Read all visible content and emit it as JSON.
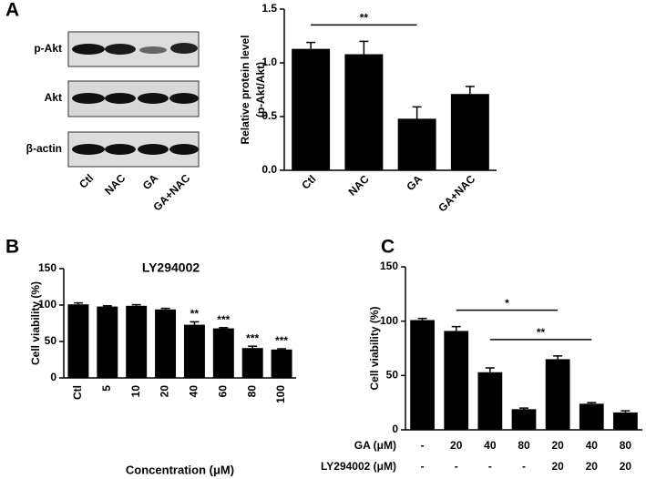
{
  "panels": [
    "A",
    "B",
    "C"
  ],
  "blot": {
    "rows": [
      "p-Akt",
      "Akt",
      "β-actin"
    ],
    "lanes": [
      "Ctl",
      "NAC",
      "GA",
      "GA+NAC"
    ]
  },
  "chart_data": [
    {
      "type": "bar",
      "ylabel": [
        "Relative protein level",
        "(p-Akt/Akt)"
      ],
      "categories": [
        "Ctl",
        "NAC",
        "GA",
        "GA+NAC"
      ],
      "values": [
        1.13,
        1.08,
        0.48,
        0.71
      ],
      "errors": [
        0.06,
        0.12,
        0.11,
        0.07
      ],
      "color": "#000000",
      "ylim": [
        0,
        1.5
      ],
      "yticks": [
        {
          "value": 0,
          "label": "0.0"
        },
        0.5,
        {
          "value": 1,
          "label": "1.0"
        },
        1.5
      ],
      "brackets": [
        {
          "from": 0,
          "to": 2,
          "text": "**"
        }
      ]
    },
    {
      "type": "bar",
      "title": "LY294002",
      "xlabel": "Concentration (μM)",
      "ylabel": "Cell viability (%)",
      "categories": [
        "Ctl",
        "5",
        "10",
        "20",
        "40",
        "60",
        "80",
        "100"
      ],
      "values": [
        101,
        98,
        99,
        94,
        73,
        68,
        41,
        39
      ],
      "errors": [
        2,
        1,
        1.5,
        1.5,
        4,
        1,
        2.5,
        1
      ],
      "color": "#000000",
      "ylim": [
        0,
        150
      ],
      "yticks": [
        0,
        50,
        100,
        150
      ],
      "marks": [
        {
          "category": 4,
          "text": "**"
        },
        {
          "category": 5,
          "text": "***"
        },
        {
          "category": 6,
          "text": "***"
        },
        {
          "category": 7,
          "text": "***"
        }
      ]
    },
    {
      "type": "bar",
      "ylabel": "Cell viability (%)",
      "rows": [
        {
          "label": "GA (μM)",
          "values": [
            "-",
            "20",
            "40",
            "80",
            "20",
            "40",
            "80"
          ]
        },
        {
          "label": "LY294002 (μM)",
          "values": [
            "-",
            "-",
            "-",
            "-",
            "20",
            "20",
            "20"
          ]
        }
      ],
      "values": [
        101,
        91,
        53,
        19,
        65,
        24,
        16
      ],
      "errors": [
        1.5,
        4,
        4,
        1,
        3,
        1,
        1.5
      ],
      "color": "#000000",
      "ylim": [
        0,
        150
      ],
      "yticks": [
        0,
        50,
        100,
        150
      ],
      "brackets": [
        {
          "from": 1,
          "to": 4,
          "text": "*"
        },
        {
          "from": 2,
          "to": 5,
          "text": "**"
        }
      ]
    }
  ]
}
